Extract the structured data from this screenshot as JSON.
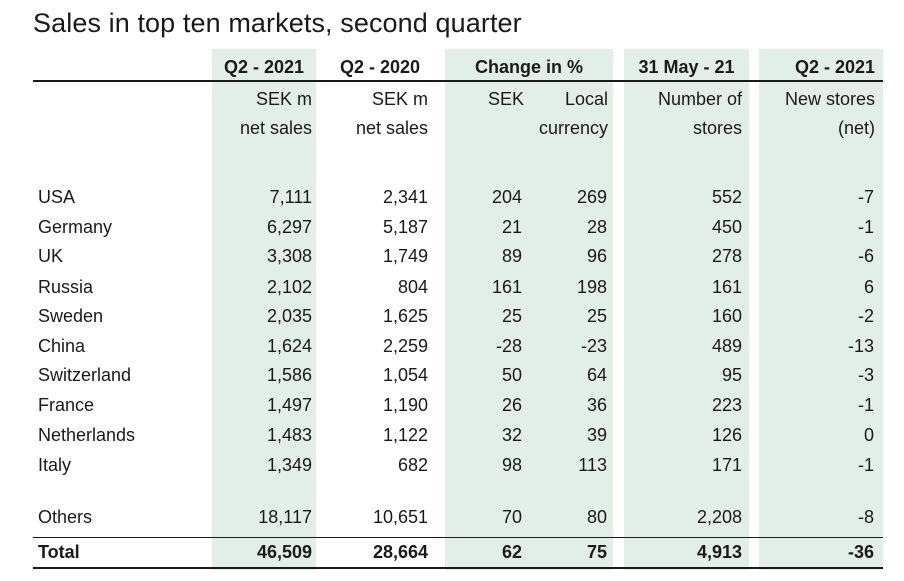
{
  "title": "Sales in top ten markets, second quarter",
  "headers": {
    "col1": "Q2 - 2021",
    "col2": "Q2 - 2020",
    "col3": "Change in %",
    "col4": "31 May - 21",
    "col5": "Q2 - 2021"
  },
  "subheaders": {
    "col1_line1": "SEK m",
    "col1_line2": "net sales",
    "col2_line1": "SEK m",
    "col2_line2": "net sales",
    "sek": "SEK",
    "local_line1": "Local",
    "local_line2": "currency",
    "stores_line1": "Number of",
    "stores_line2": "stores",
    "new_line1": "New stores",
    "new_line2": "(net)"
  },
  "chart_data": {
    "type": "table",
    "title": "Sales in top ten markets, second quarter",
    "columns": [
      "Q2 - 2021 SEK m net sales",
      "Q2 - 2020 SEK m net sales",
      "Change in % SEK",
      "Change in % Local currency",
      "31 May - 21 Number of stores",
      "Q2 - 2021 New stores (net)"
    ],
    "rows": [
      {
        "market": "USA",
        "values": [
          "7,111",
          "2,341",
          "204",
          "269",
          "552",
          "-7"
        ]
      },
      {
        "market": "Germany",
        "values": [
          "6,297",
          "5,187",
          "21",
          "28",
          "450",
          "-1"
        ]
      },
      {
        "market": "UK",
        "values": [
          "3,308",
          "1,749",
          "89",
          "96",
          "278",
          "-6"
        ]
      },
      {
        "market": "Russia",
        "values": [
          "2,102",
          "804",
          "161",
          "198",
          "161",
          "6"
        ]
      },
      {
        "market": "Sweden",
        "values": [
          "2,035",
          "1,625",
          "25",
          "25",
          "160",
          "-2"
        ]
      },
      {
        "market": "China",
        "values": [
          "1,624",
          "2,259",
          "-28",
          "-23",
          "489",
          "-13"
        ]
      },
      {
        "market": "Switzerland",
        "values": [
          "1,586",
          "1,054",
          "50",
          "64",
          "95",
          "-3"
        ]
      },
      {
        "market": "France",
        "values": [
          "1,497",
          "1,190",
          "26",
          "36",
          "223",
          "-1"
        ]
      },
      {
        "market": "Netherlands",
        "values": [
          "1,483",
          "1,122",
          "32",
          "39",
          "126",
          "0"
        ]
      },
      {
        "market": "Italy",
        "values": [
          "1,349",
          "682",
          "98",
          "113",
          "171",
          "-1"
        ]
      }
    ],
    "others": {
      "market": "Others",
      "values": [
        "18,117",
        "10,651",
        "70",
        "80",
        "2,208",
        "-8"
      ]
    },
    "total": {
      "market": "Total",
      "values": [
        "46,509",
        "28,664",
        "62",
        "75",
        "4,913",
        "-36"
      ]
    }
  },
  "colors": {
    "shade": "#e2eee8",
    "text": "#1a1a1a"
  }
}
